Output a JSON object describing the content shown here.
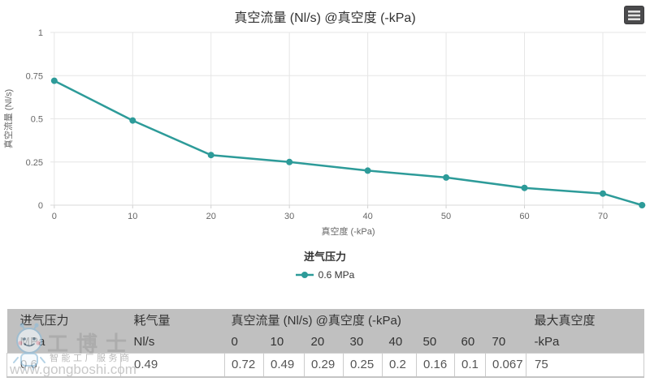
{
  "chart": {
    "title": "真空流量 (Nl/s) @真空度 (-kPa)",
    "legend_title": "进气压力",
    "series_name": "0.6 MPa",
    "accent_color": "#2d9b99",
    "icons": {
      "export_menu": "hamburger-menu-icon"
    }
  },
  "chart_data": {
    "type": "line",
    "title": "真空流量 (Nl/s) @真空度 (-kPa)",
    "xlabel": "真空度 (-kPa)",
    "ylabel": "真空流量 (Nl/s)",
    "x": [
      0,
      10,
      20,
      30,
      40,
      50,
      60,
      70,
      75
    ],
    "series": [
      {
        "name": "0.6 MPa",
        "values": [
          0.72,
          0.49,
          0.29,
          0.25,
          0.2,
          0.16,
          0.1,
          0.067,
          0
        ]
      }
    ],
    "xlim": [
      -0.5,
      75.5
    ],
    "ylim": [
      0,
      1
    ],
    "x_ticks": [
      0,
      10,
      20,
      30,
      40,
      50,
      60,
      70
    ],
    "y_ticks": [
      0,
      0.25,
      0.5,
      0.75,
      1
    ],
    "grid": true,
    "legend_position": "bottom",
    "line_color": "#2d9b99"
  },
  "table": {
    "header_bg": "#c0c0c0",
    "col_groups": [
      {
        "label": "进气压力",
        "unit": "MPa"
      },
      {
        "label": "耗气量",
        "unit": "Nl/s"
      },
      {
        "label": "真空流量 (Nl/s) @真空度 (-kPa)",
        "sub": [
          "0",
          "10",
          "20",
          "30",
          "40",
          "50",
          "60",
          "70"
        ]
      },
      {
        "label": "最大真空度",
        "unit": "-kPa"
      }
    ],
    "row": [
      "0.6",
      "0.49",
      "0.72",
      "0.49",
      "0.29",
      "0.25",
      "0.2",
      "0.16",
      "0.1",
      "0.067",
      "75"
    ]
  },
  "watermark": {
    "brand": "工博士",
    "slogan": "智能工厂服务商",
    "url": "www.gongboshi.com",
    "mascot": "robot-mascot-icon"
  }
}
